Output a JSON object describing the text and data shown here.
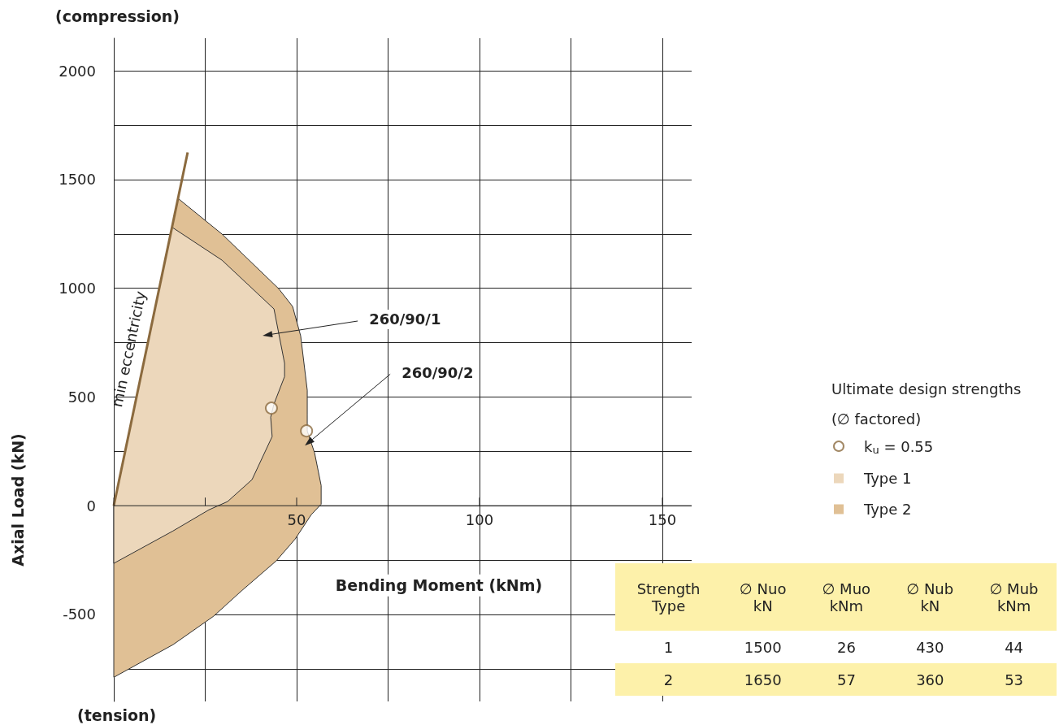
{
  "chart_data": [
    {
      "type": "area",
      "xlabel": "Bending Moment (kNm)",
      "ylabel": "Axial Load (kN)",
      "legend_title": "Ultimate design strengths\n(∅ factored)",
      "xlim": [
        0,
        158
      ],
      "ylim": [
        -900,
        2150
      ],
      "xticks": [
        {
          "value": 0,
          "label": null
        },
        {
          "value": 25,
          "label": null
        },
        50,
        {
          "value": 75,
          "label": null
        },
        100,
        {
          "value": 125,
          "label": null
        },
        150
      ],
      "yticks": [
        {
          "value": -750,
          "label": null
        },
        -500,
        {
          "value": -250,
          "label": null
        },
        0,
        {
          "value": 250,
          "label": null
        },
        500,
        {
          "value": 750,
          "label": null
        },
        1000,
        {
          "value": 1250,
          "label": null
        },
        1500,
        {
          "value": 1750,
          "label": null
        },
        2000
      ],
      "grid": true,
      "legend": "right",
      "series": [
        {
          "name": "k$_{u}$ = 0.55",
          "type": "scatter",
          "color": "#8b6a3e",
          "marker": "circle",
          "x": [
            43.1,
            52.7
          ],
          "values": [
            449,
            344
          ]
        },
        {
          "name": "min eccentricity",
          "type": "line",
          "color": "#8b6a3e",
          "x": [
            0,
            20.2
          ],
          "values": [
            0,
            1625
          ],
          "marker": "none"
        },
        {
          "name": "Type 1",
          "type": "area",
          "color": "#ecd7bb",
          "x": [
            0,
            15.9,
            29.6,
            43.8,
            46.7,
            46.7,
            43.8,
            42.9,
            43.3,
            37.8,
            31.1,
            26,
            16.2,
            0
          ],
          "values": [
            0,
            1281,
            1129,
            905,
            655,
            594,
            468,
            407,
            318,
            120,
            19,
            -19,
            -116,
            -265
          ]
        },
        {
          "name": "Type 2",
          "type": "area",
          "color": "#e0c095",
          "x": [
            0,
            17.6,
            29.6,
            45.1,
            48.9,
            51.1,
            52.9,
            52.9,
            52.9,
            54.9,
            56.7,
            56.7,
            54,
            49.6,
            44.4,
            34.9,
            27.3,
            16.2,
            0
          ],
          "values": [
            0,
            1413,
            1249,
            998,
            916,
            781,
            531,
            419,
            344,
            243,
            93,
            7,
            -41,
            -153,
            -254,
            -392,
            -508,
            -639,
            -789
          ]
        }
      ],
      "annotations": [
        "260/90/1",
        "260/90/2",
        "(compression)",
        "(tension)"
      ]
    },
    {
      "type": "other",
      "categories": [
        "Strength\nType",
        "∅ Nuo\nkN",
        "∅ Muo\nkNm",
        "∅ Nub\nkN",
        "∅ Mub\nkNm"
      ],
      "cells": [
        [
          "1",
          "1500",
          "26",
          "430",
          "44"
        ],
        [
          "2",
          "1650",
          "57",
          "360",
          "53"
        ]
      ]
    }
  ]
}
